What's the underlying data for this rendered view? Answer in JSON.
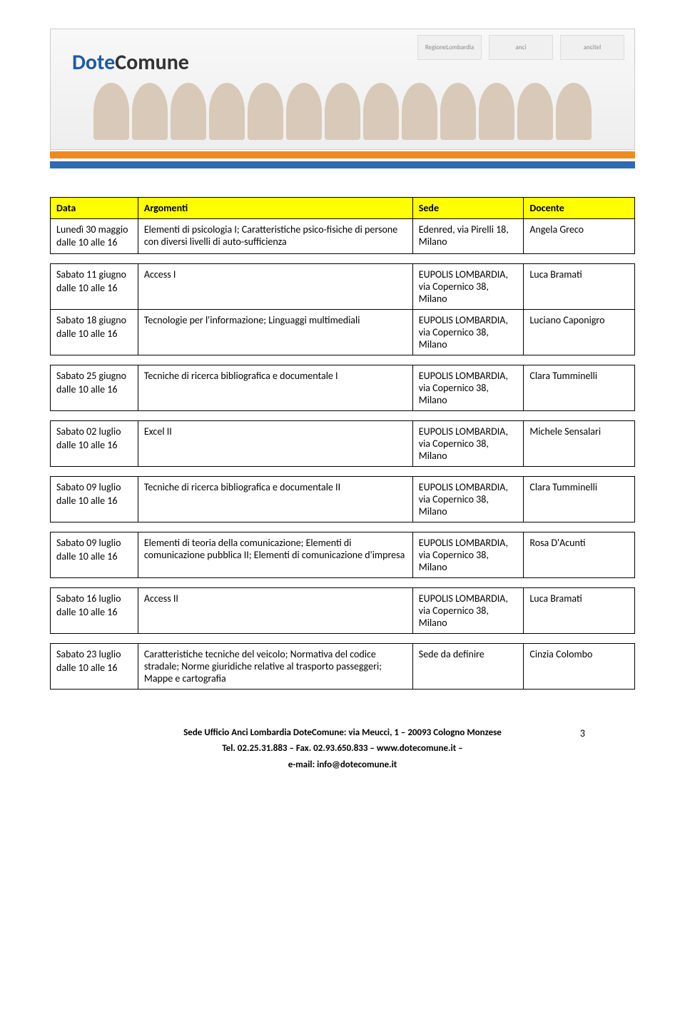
{
  "banner": {
    "title_part1": "Dote",
    "title_part2": "Comune",
    "logos": [
      "RegioneLombardia",
      "anci",
      "ancitel"
    ]
  },
  "table": {
    "headers": [
      "Data",
      "Argomenti",
      "Sede",
      "Docente"
    ],
    "location_default": "EUPOLIS LOMBARDIA, via Copernico 38, Milano",
    "groups": [
      [
        {
          "date": "Lunedì 30 maggio dalle 10 alle 16",
          "topic": "Elementi di psicologia I; Caratteristiche psico-fisiche di persone con diversi livelli di auto-sufficienza",
          "sede": "Edenred, via Pirelli 18, Milano",
          "docente": "Angela Greco"
        }
      ],
      [
        {
          "date": "Sabato 11 giugno dalle 10 alle 16",
          "topic": "Access I",
          "sede": "EUPOLIS LOMBARDIA, via Copernico 38, Milano",
          "docente": "Luca Bramati"
        },
        {
          "date": "Sabato 18 giugno dalle 10 alle 16",
          "topic": "Tecnologie per l'informazione; Linguaggi multimediali",
          "sede": "EUPOLIS LOMBARDIA, via Copernico 38, Milano",
          "docente": "Luciano Caponigro"
        }
      ],
      [
        {
          "date": "Sabato 25 giugno dalle 10 alle 16",
          "topic": "Tecniche di ricerca bibliografica e documentale I",
          "sede": "EUPOLIS LOMBARDIA, via Copernico 38, Milano",
          "docente": "Clara Tumminelli"
        }
      ],
      [
        {
          "date": "Sabato 02 luglio dalle 10 alle 16",
          "topic": "Excel II",
          "sede": "EUPOLIS LOMBARDIA, via Copernico 38, Milano",
          "docente": "Michele Sensalari"
        }
      ],
      [
        {
          "date": "Sabato 09 luglio dalle 10 alle 16",
          "topic": "Tecniche di ricerca bibliografica e documentale II",
          "sede": "EUPOLIS LOMBARDIA, via Copernico 38, Milano",
          "docente": "Clara Tumminelli"
        }
      ],
      [
        {
          "date": "Sabato 09 luglio dalle 10 alle 16",
          "topic": "Elementi di teoria della comunicazione; Elementi di comunicazione pubblica II; Elementi di comunicazione d'impresa",
          "sede": "EUPOLIS LOMBARDIA, via Copernico 38, Milano",
          "docente": "Rosa D'Acunti"
        }
      ],
      [
        {
          "date": "Sabato 16 luglio dalle 10 alle 16",
          "topic": "Access II",
          "sede": "EUPOLIS LOMBARDIA, via Copernico 38, Milano",
          "docente": "Luca Bramati"
        }
      ],
      [
        {
          "date": "Sabato 23 luglio dalle 10 alle 16",
          "topic": "Caratteristiche tecniche del veicolo; Normativa del codice stradale; Norme giuridiche relative al trasporto passeggeri; Mappe e cartografia",
          "sede": "Sede da definire",
          "docente": "Cinzia Colombo"
        }
      ]
    ]
  },
  "footer": {
    "line1": "Sede Ufficio Anci Lombardia DoteComune: via Meucci, 1 – 20093 Cologno Monzese",
    "line2": "Tel. 02.25.31.883 – Fax. 02.93.650.833 – www.dotecomune.it –",
    "line3": "e-mail: info@dotecomune.it",
    "page_number": "3"
  }
}
